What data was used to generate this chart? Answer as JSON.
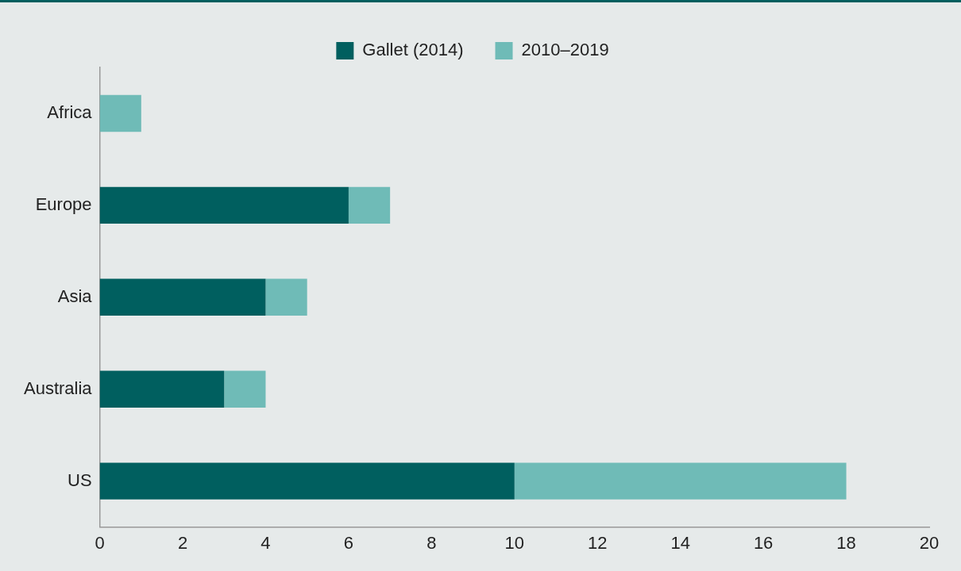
{
  "chart_data": {
    "type": "bar",
    "orientation": "horizontal",
    "stacked": true,
    "categories": [
      "Africa",
      "Europe",
      "Asia",
      "Australia",
      "US"
    ],
    "series": [
      {
        "name": "Gallet (2014)",
        "color": "#005f5f",
        "values": [
          0,
          6,
          4,
          3,
          10
        ]
      },
      {
        "name": "2010–2019",
        "color": "#6fbbb7",
        "values": [
          1,
          1,
          1,
          1,
          8
        ]
      }
    ],
    "xlim": [
      0,
      20
    ],
    "xticks": [
      0,
      2,
      4,
      6,
      8,
      10,
      12,
      14,
      16,
      18,
      20
    ],
    "grid": false,
    "legend": "top"
  }
}
